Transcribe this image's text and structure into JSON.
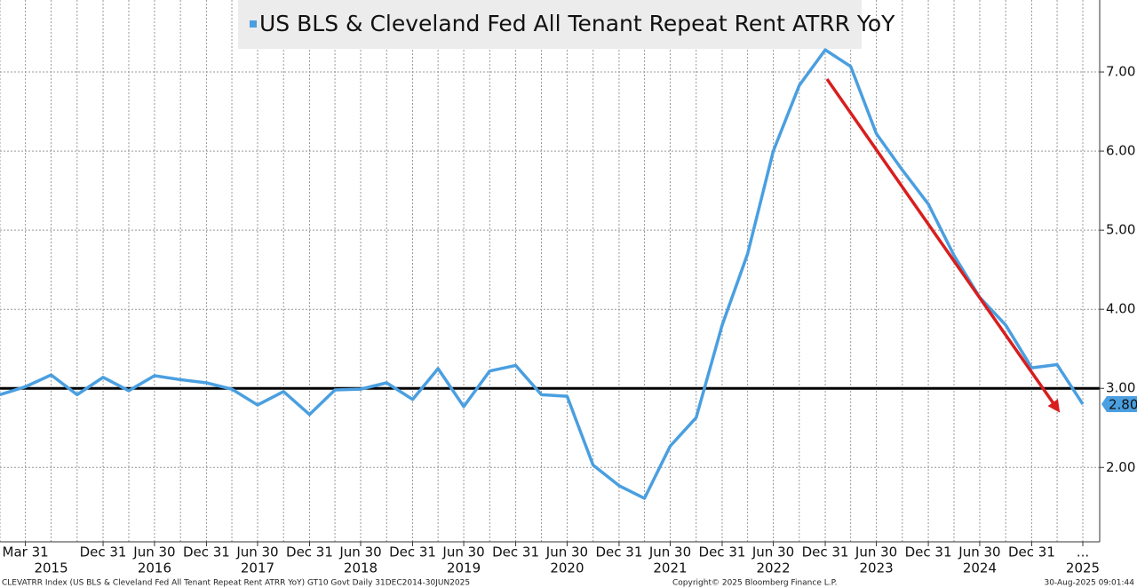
{
  "chart_data": {
    "type": "line",
    "x": [
      "2014-12-31",
      "2015-03-31",
      "2015-06-30",
      "2015-09-30",
      "2015-12-31",
      "2016-03-31",
      "2016-06-30",
      "2016-09-30",
      "2016-12-31",
      "2017-03-31",
      "2017-06-30",
      "2017-09-30",
      "2017-12-31",
      "2018-03-31",
      "2018-06-30",
      "2018-09-30",
      "2018-12-31",
      "2019-03-31",
      "2019-06-30",
      "2019-09-30",
      "2019-12-31",
      "2020-03-31",
      "2020-06-30",
      "2020-09-30",
      "2020-12-31",
      "2021-03-31",
      "2021-06-30",
      "2021-09-30",
      "2021-12-31",
      "2022-03-31",
      "2022-06-30",
      "2022-09-30",
      "2022-12-31",
      "2023-03-31",
      "2023-06-30",
      "2023-09-30",
      "2023-12-31",
      "2024-03-31",
      "2024-06-30",
      "2024-09-30",
      "2024-12-31",
      "2025-03-31",
      "2025-06-30"
    ],
    "series": [
      {
        "name": "US BLS & Cleveland Fed All Tenant Repeat Rent ATRR YoY",
        "color": "#4a9fe0",
        "values": [
          2.92,
          3.02,
          3.17,
          2.92,
          3.14,
          2.97,
          3.16,
          3.11,
          3.07,
          2.99,
          2.79,
          2.96,
          2.67,
          2.98,
          2.99,
          3.07,
          2.86,
          3.25,
          2.77,
          3.22,
          3.29,
          2.92,
          2.9,
          2.03,
          1.77,
          1.61,
          2.27,
          2.63,
          3.8,
          4.7,
          6.0,
          6.83,
          7.28,
          7.07,
          6.22,
          5.76,
          5.33,
          4.68,
          4.15,
          3.8,
          3.26,
          3.3,
          2.8
        ]
      }
    ],
    "last_value_label": "2.80",
    "reference_line": 3,
    "ylim": [
      1.06,
      7.91
    ],
    "yticks": [
      {
        "value": 2,
        "label": "2.00"
      },
      {
        "value": 3,
        "label": "3.00"
      },
      {
        "value": 4,
        "label": "4.00"
      },
      {
        "value": 5,
        "label": "5.00"
      },
      {
        "value": 6,
        "label": "6.00"
      },
      {
        "value": 7,
        "label": "7.00"
      }
    ],
    "xticks": [
      {
        "value": "2015-03-31",
        "label": "Mar 31"
      },
      {
        "value": "2015-12-31",
        "label": "Dec 31"
      },
      {
        "value": "2016-06-30",
        "label": "Jun 30"
      },
      {
        "value": "2016-12-31",
        "label": "Dec 31"
      },
      {
        "value": "2017-06-30",
        "label": "Jun 30"
      },
      {
        "value": "2017-12-31",
        "label": "Dec 31"
      },
      {
        "value": "2018-06-30",
        "label": "Jun 30"
      },
      {
        "value": "2018-12-31",
        "label": "Dec 31"
      },
      {
        "value": "2019-06-30",
        "label": "Jun 30"
      },
      {
        "value": "2019-12-31",
        "label": "Dec 31"
      },
      {
        "value": "2020-06-30",
        "label": "Jun 30"
      },
      {
        "value": "2020-12-31",
        "label": "Dec 31"
      },
      {
        "value": "2021-06-30",
        "label": "Jun 30"
      },
      {
        "value": "2021-12-31",
        "label": "Dec 31"
      },
      {
        "value": "2022-06-30",
        "label": "Jun 30"
      },
      {
        "value": "2022-12-31",
        "label": "Dec 31"
      },
      {
        "value": "2023-06-30",
        "label": "Jun 30"
      },
      {
        "value": "2023-12-31",
        "label": "Dec 31"
      },
      {
        "value": "2024-06-30",
        "label": "Jun 30"
      },
      {
        "value": "2024-12-31",
        "label": "Dec 31"
      },
      {
        "value": "2025-06-30",
        "label": "..."
      }
    ],
    "years": [
      "2015",
      "2016",
      "2017",
      "2018",
      "2019",
      "2020",
      "2021",
      "2022",
      "2023",
      "2024",
      "2025"
    ],
    "grid": true,
    "footer": {
      "left": "CLEVATRR Index (US BLS & Cleveland Fed All Tenant Repeat Rent ATRR YoY) GT10  Govt  Daily 31DEC2014-30JUN2025",
      "center": "Copyright© 2025 Bloomberg Finance L.P.",
      "right": "30-Aug-2025 09:01:44"
    }
  }
}
